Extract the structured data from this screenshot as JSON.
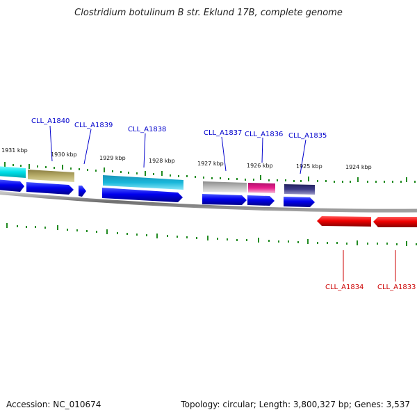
{
  "title": "Clostridium botulinum B str. Eklund 17B, complete genome",
  "footer": {
    "accession": "Accession: NC_010674",
    "summary": "Topology: circular; Length: 3,800,327 bp; Genes: 3,537"
  },
  "scale_labels": [
    "1931 kbp",
    "1930 kbp",
    "1929 kbp",
    "1928 kbp",
    "1927 kbp",
    "1926 kbp",
    "1925 kbp",
    "1924 kbp"
  ],
  "gene_labels": {
    "forward": [
      "CLL_A1840",
      "CLL_A1839",
      "CLL_A1838",
      "CLL_A1837",
      "CLL_A1836",
      "CLL_A1835"
    ],
    "reverse": [
      "CLL_A1834",
      "CLL_A1833"
    ]
  },
  "colors": {
    "forward_label": "#0000cc",
    "reverse_label": "#cc0000",
    "forward_gene": "#0000ee",
    "reverse_gene": "#ee0000",
    "tick": "#228b22",
    "backbone": "#808080",
    "cog_cyan": "#00e0e8",
    "cog_olive": "#b8ad6a",
    "cog_skyblue": "#19b7da",
    "cog_grey": "#bcbcbc",
    "cog_pink": "#e8208c",
    "cog_navy": "#3e3c88"
  }
}
